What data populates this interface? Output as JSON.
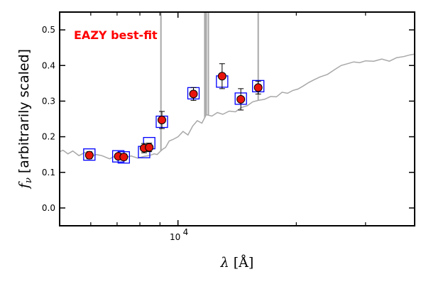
{
  "chart_data": {
    "type": "scatter",
    "title": "",
    "xlabel": "λ [Å]",
    "ylabel": "f_ν [arbitrarily scaled]",
    "ylabel_parts": {
      "symbol": "f",
      "subscript": "ν",
      "text": " [arbitrarily scaled]"
    },
    "xlabel_parts": {
      "symbol": "λ",
      "text": " [Å]"
    },
    "x_scale": "log",
    "xlim": [
      5000,
      40000
    ],
    "ylim": [
      -0.05,
      0.55
    ],
    "yticks": [
      0.0,
      0.1,
      0.2,
      0.3,
      0.4,
      0.5
    ],
    "ytick_labels": [
      "0.0",
      "0.1",
      "0.2",
      "0.3",
      "0.4",
      "0.5"
    ],
    "xticks_major": [
      10000
    ],
    "xtick_labels": [
      {
        "base": "10",
        "exp": "4"
      }
    ],
    "xticks_minor": [
      6000,
      7000,
      8000,
      9000,
      20000,
      30000,
      40000
    ],
    "grid": false,
    "legend": "none",
    "annotation": {
      "text": "EAZY best-fit",
      "color": "#ff0000"
    },
    "colors": {
      "observed": "#e8140c",
      "model_box": "#0000ff",
      "template": "#a8a8a8"
    },
    "template_spectrum": {
      "x": [
        5000,
        5100,
        5250,
        5400,
        5600,
        5800,
        6000,
        6200,
        6400,
        6700,
        7000,
        7300,
        7600,
        7900,
        8200,
        8500,
        8700,
        8850,
        9000,
        9150,
        9300,
        9500,
        9700,
        10000,
        10300,
        10600,
        10900,
        11200,
        11500,
        11800,
        12200,
        12600,
        13000,
        13500,
        14000,
        14500,
        15000,
        15500,
        16000,
        16600,
        17200,
        17800,
        18400,
        19000,
        19600,
        20200,
        20800,
        21500,
        22200,
        23000,
        24000,
        25000,
        26000,
        27000,
        28000,
        29000,
        30000,
        31500,
        33000,
        34500,
        36000,
        37500,
        39000,
        40000
      ],
      "y": [
        0.158,
        0.162,
        0.152,
        0.16,
        0.147,
        0.156,
        0.145,
        0.15,
        0.147,
        0.138,
        0.148,
        0.141,
        0.146,
        0.14,
        0.145,
        0.148,
        0.152,
        0.15,
        0.158,
        0.165,
        0.17,
        0.188,
        0.192,
        0.2,
        0.215,
        0.205,
        0.23,
        0.245,
        0.238,
        0.262,
        0.258,
        0.268,
        0.263,
        0.272,
        0.27,
        0.282,
        0.287,
        0.298,
        0.302,
        0.305,
        0.313,
        0.312,
        0.325,
        0.322,
        0.33,
        0.334,
        0.342,
        0.352,
        0.36,
        0.368,
        0.375,
        0.388,
        0.4,
        0.405,
        0.41,
        0.408,
        0.413,
        0.412,
        0.418,
        0.412,
        0.422,
        0.425,
        0.43,
        0.432
      ]
    },
    "emission_lines": [
      {
        "x": 9050,
        "peak": 0.55
      },
      {
        "x": 11700,
        "peak": 0.55
      },
      {
        "x": 11800,
        "peak": 0.55
      },
      {
        "x": 11950,
        "peak": 0.55
      },
      {
        "x": 16000,
        "peak": 0.55
      }
    ],
    "observed": {
      "x": [
        5950,
        7050,
        7280,
        8200,
        8450,
        9100,
        10950,
        12950,
        14450,
        16000
      ],
      "y": [
        0.148,
        0.145,
        0.143,
        0.168,
        0.17,
        0.247,
        0.32,
        0.37,
        0.305,
        0.338
      ],
      "yerr": [
        0.01,
        0.008,
        0.009,
        0.013,
        0.012,
        0.024,
        0.018,
        0.035,
        0.03,
        0.018
      ]
    },
    "model": {
      "x": [
        5950,
        7050,
        7280,
        8200,
        8450,
        9100,
        10950,
        12950,
        14450,
        16000
      ],
      "y": [
        0.15,
        0.145,
        0.142,
        0.157,
        0.182,
        0.242,
        0.322,
        0.355,
        0.307,
        0.342
      ]
    }
  }
}
